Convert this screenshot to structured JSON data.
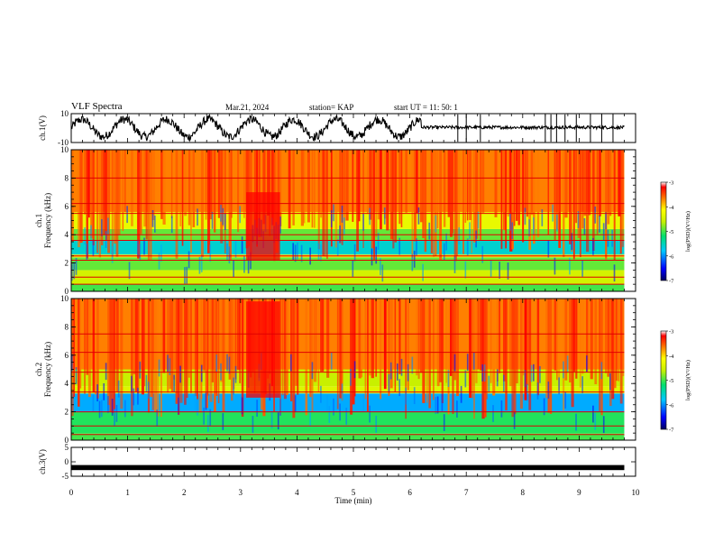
{
  "header": {
    "title": "VLF Spectra",
    "date": "Mar.21, 2024",
    "station": "station= KAP",
    "start_ut": "start  UT  =   11: 50: 1"
  },
  "chart_data": [
    {
      "type": "line",
      "name": "ch1-waveform",
      "ylabel": "ch.1(V)",
      "ylim": [
        -10,
        10
      ],
      "yticks": [
        "10",
        "-10"
      ],
      "xlim": [
        0,
        10
      ],
      "x_end": 9.8,
      "series_description_values": {
        "oscillating_until_min": 6.2,
        "flat_level_after": 0,
        "spike_times_min": [
          6.85,
          7.0,
          7.25,
          8.4,
          8.5,
          8.6,
          8.75,
          8.95,
          9.2,
          9.4,
          9.6
        ]
      }
    },
    {
      "type": "heatmap",
      "name": "ch1-spectrogram",
      "ylabel": "ch.1\nFrequency (kHz)",
      "ylabel_top": "ch.1",
      "ylabel_bottom": "Frequency (kHz)",
      "ylim": [
        0,
        10
      ],
      "yticks": [
        "0",
        "2",
        "4",
        "6",
        "8",
        "10"
      ],
      "xlim": [
        0,
        10
      ],
      "x_end": 9.8,
      "colorbar": {
        "label": "log(PSD)(V²/Hz)",
        "range": [
          -7,
          -3
        ],
        "ticks": [
          "-3",
          "-4",
          "-5",
          "-6",
          "-7"
        ]
      },
      "bands": [
        {
          "f": [
            0,
            0.5
          ],
          "level": -5.0
        },
        {
          "f": [
            0.5,
            1.5
          ],
          "level": -4.5
        },
        {
          "f": [
            1.5,
            2.4
          ],
          "level": -4.9
        },
        {
          "f": [
            2.4,
            2.6
          ],
          "level": -4.0
        },
        {
          "f": [
            2.6,
            3.6
          ],
          "level": -5.6
        },
        {
          "f": [
            3.6,
            4.4
          ],
          "level": -4.9
        },
        {
          "f": [
            4.4,
            5.6
          ],
          "level": -4.3
        },
        {
          "f": [
            5.6,
            10
          ],
          "level": -3.7
        }
      ],
      "burst": {
        "t": [
          3.1,
          3.7
        ],
        "f": [
          2.2,
          7.0
        ],
        "level": -3.2
      },
      "lines_khz": [
        0.5,
        1.0,
        2.2,
        2.5,
        3.6,
        4.0,
        5.5,
        6.2,
        8.0
      ]
    },
    {
      "type": "heatmap",
      "name": "ch2-spectrogram",
      "ylabel_top": "ch.2",
      "ylabel_bottom": "Frequency (kHz)",
      "ylim": [
        0,
        10
      ],
      "yticks": [
        "0",
        "2",
        "4",
        "6",
        "8",
        "10"
      ],
      "xlim": [
        0,
        10
      ],
      "x_end": 9.8,
      "colorbar": {
        "label": "log(PSD)(V²/Hz)",
        "range": [
          -7,
          -3
        ],
        "ticks": [
          "-3",
          "-4",
          "-5",
          "-6",
          "-7"
        ]
      },
      "bands": [
        {
          "f": [
            0,
            0.5
          ],
          "level": -5.0
        },
        {
          "f": [
            0.5,
            2.0
          ],
          "level": -5.1
        },
        {
          "f": [
            2.0,
            3.3
          ],
          "level": -5.9
        },
        {
          "f": [
            3.3,
            3.8
          ],
          "level": -4.4
        },
        {
          "f": [
            3.8,
            5.0
          ],
          "level": -4.6
        },
        {
          "f": [
            5.0,
            10
          ],
          "level": -3.7
        }
      ],
      "burst": {
        "t": [
          3.1,
          3.7
        ],
        "f": [
          3.0,
          9.8
        ],
        "level": -3.2
      },
      "lines_khz": [
        0.4,
        1.0,
        2.0,
        3.4,
        4.8,
        6.2,
        7.5
      ]
    },
    {
      "type": "line",
      "name": "ch3-waveform",
      "ylabel": "ch.3(V)",
      "ylim": [
        -5,
        5
      ],
      "yticks": [
        "5",
        "0",
        "-5"
      ],
      "xlim": [
        0,
        10
      ],
      "x_end": 9.8,
      "level": -2,
      "xlabel": "Time (min)",
      "xticks": [
        "0",
        "1",
        "2",
        "3",
        "4",
        "5",
        "6",
        "7",
        "8",
        "9",
        "10"
      ]
    }
  ]
}
